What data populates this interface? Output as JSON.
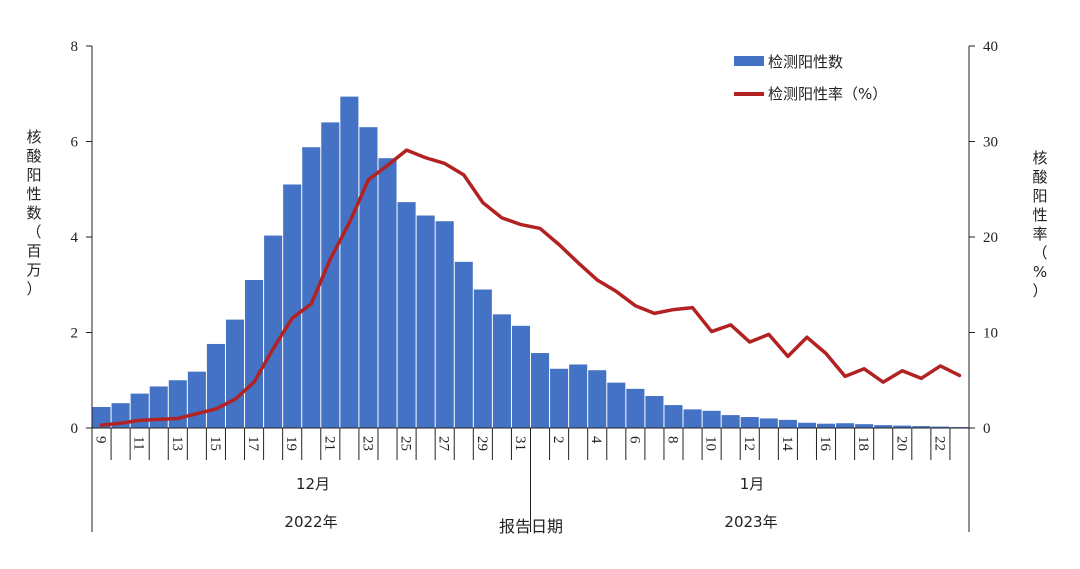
{
  "chart_data": {
    "type": "bar+line",
    "x_title": "报告日期",
    "y_left_title_chars": [
      "核",
      "酸",
      "阳",
      "性",
      "数",
      "（",
      "百",
      "万",
      "）"
    ],
    "y_right_title_chars": [
      "核",
      "酸",
      "阳",
      "性",
      "率",
      "（",
      "%",
      "）"
    ],
    "y_left_lim": [
      0,
      8
    ],
    "y_left_ticks": [
      "0",
      "2",
      "4",
      "6",
      "8"
    ],
    "y_right_lim": [
      0,
      40
    ],
    "y_right_ticks": [
      "0",
      "10",
      "20",
      "30",
      "40"
    ],
    "categories": [
      "2022-12-09",
      "2022-12-10",
      "2022-12-11",
      "2022-12-12",
      "2022-12-13",
      "2022-12-14",
      "2022-12-15",
      "2022-12-16",
      "2022-12-17",
      "2022-12-18",
      "2022-12-19",
      "2022-12-20",
      "2022-12-21",
      "2022-12-22",
      "2022-12-23",
      "2022-12-24",
      "2022-12-25",
      "2022-12-26",
      "2022-12-27",
      "2022-12-28",
      "2022-12-29",
      "2022-12-30",
      "2022-12-31",
      "2023-01-01",
      "2023-01-02",
      "2023-01-03",
      "2023-01-04",
      "2023-01-05",
      "2023-01-06",
      "2023-01-07",
      "2023-01-08",
      "2023-01-09",
      "2023-01-10",
      "2023-01-11",
      "2023-01-12",
      "2023-01-13",
      "2023-01-14",
      "2023-01-15",
      "2023-01-16",
      "2023-01-17",
      "2023-01-18",
      "2023-01-19",
      "2023-01-20",
      "2023-01-21",
      "2023-01-22",
      "2023-01-23"
    ],
    "tick_labels": [
      "9",
      "11",
      "13",
      "15",
      "17",
      "19",
      "21",
      "23",
      "25",
      "27",
      "29",
      "31",
      "2",
      "4",
      "6",
      "8",
      "10",
      "12",
      "14",
      "16",
      "18",
      "20",
      "22"
    ],
    "month_labels": [
      "12月",
      "1月"
    ],
    "year_labels": [
      "2022年",
      "2023年"
    ],
    "series": [
      {
        "name": "检测阳性数",
        "type": "bar",
        "axis": "left",
        "color": "#4472c4",
        "values": [
          0.44,
          0.52,
          0.72,
          0.87,
          1.0,
          1.18,
          1.76,
          2.27,
          3.1,
          4.03,
          5.1,
          5.88,
          6.4,
          6.94,
          6.3,
          5.65,
          4.73,
          4.45,
          4.33,
          3.48,
          2.9,
          2.38,
          2.14,
          1.57,
          1.24,
          1.33,
          1.21,
          0.95,
          0.82,
          0.67,
          0.48,
          0.39,
          0.36,
          0.27,
          0.23,
          0.2,
          0.17,
          0.11,
          0.09,
          0.1,
          0.08,
          0.06,
          0.05,
          0.04,
          0.03,
          0.02
        ]
      },
      {
        "name": "检测阳性率（%）",
        "type": "line",
        "axis": "right",
        "color": "#b22222",
        "values": [
          0.3,
          0.5,
          0.8,
          0.9,
          1.0,
          1.5,
          2.0,
          3.0,
          4.8,
          8.3,
          11.5,
          13.0,
          17.7,
          21.5,
          26.0,
          27.5,
          29.1,
          28.3,
          27.7,
          26.5,
          23.6,
          22.0,
          21.3,
          20.9,
          19.2,
          17.3,
          15.5,
          14.3,
          12.8,
          12.0,
          12.4,
          12.6,
          10.1,
          10.8,
          9.0,
          9.8,
          7.5,
          9.5,
          7.8,
          5.4,
          6.2,
          4.8,
          6.0,
          5.2,
          6.5,
          5.5
        ]
      }
    ],
    "legend_position": "top-right",
    "grid": false
  }
}
